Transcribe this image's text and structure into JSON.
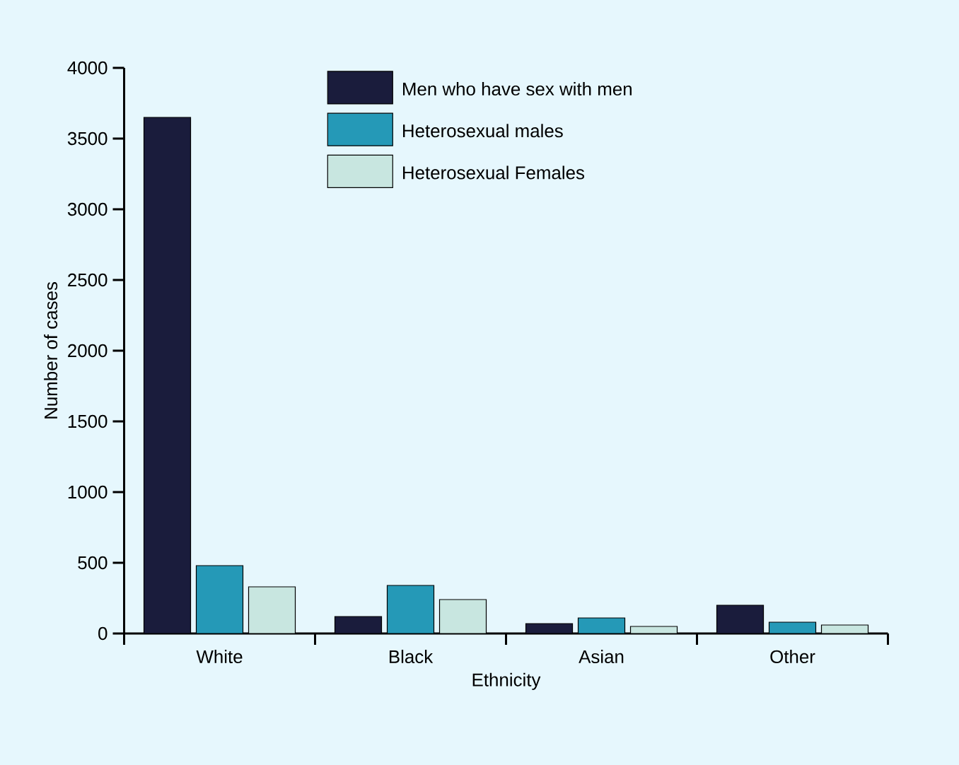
{
  "chart_data": {
    "type": "bar",
    "xlabel": "Ethnicity",
    "ylabel": "Number of cases",
    "categories": [
      "White",
      "Black",
      "Asian",
      "Other"
    ],
    "series": [
      {
        "name": "Men who have sex with men",
        "color": "#1a1c3c",
        "values": [
          3650,
          120,
          70,
          200
        ]
      },
      {
        "name": "Heterosexual males",
        "color": "#2599b7",
        "values": [
          480,
          340,
          110,
          80
        ]
      },
      {
        "name": "Heterosexual Females",
        "color": "#c8e6e0",
        "values": [
          330,
          240,
          50,
          60
        ]
      }
    ],
    "ylim": [
      0,
      4000
    ],
    "yticks": [
      0,
      500,
      1000,
      1500,
      2000,
      2500,
      3000,
      3500,
      4000
    ],
    "grid": false,
    "legend": "top right"
  }
}
